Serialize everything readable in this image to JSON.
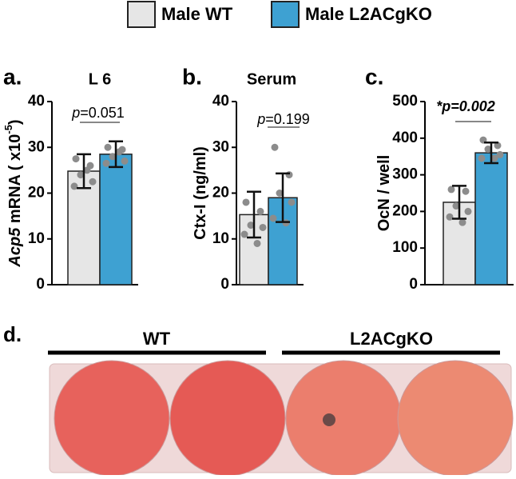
{
  "legend": {
    "items": [
      {
        "name": "Male WT",
        "color": "#e6e6e6"
      },
      {
        "name": "Male L2ACgKO",
        "color": "#3ea1d2"
      }
    ]
  },
  "chart_data": [
    {
      "type": "bar",
      "panel": "a.",
      "title": "L 6",
      "ylabel_parts": [
        "Acp5",
        " mRNA ( x10",
        "-5",
        ")"
      ],
      "annotation_parts": [
        "p",
        "=0.051"
      ],
      "values": [
        24.8,
        28.5
      ],
      "errors": [
        3.7,
        2.8
      ],
      "points": [
        [
          27.5,
          26,
          24,
          22.5,
          21.5,
          25
        ],
        [
          30,
          29.5,
          28,
          27,
          26.5,
          29
        ]
      ],
      "ylim": [
        0,
        40
      ],
      "yticks": [
        0,
        10,
        20,
        30,
        40
      ]
    },
    {
      "type": "bar",
      "panel": "b.",
      "title": "Serum",
      "ylabel_parts": [
        "Ctx-I (ng/ml)"
      ],
      "annotation_parts": [
        "p",
        "=0.199"
      ],
      "values": [
        15.3,
        19
      ],
      "errors": [
        5,
        5.3
      ],
      "points": [
        [
          18,
          16,
          13,
          12.5,
          11,
          9
        ],
        [
          30,
          24,
          20,
          18,
          14.5,
          13.5
        ]
      ],
      "ylim": [
        0,
        40
      ],
      "yticks": [
        0,
        10,
        20,
        30,
        40
      ]
    },
    {
      "type": "bar",
      "panel": "c.",
      "ylabel_parts": [
        "OcN / well"
      ],
      "annotation_parts": [
        "*p=0.002"
      ],
      "values": [
        225,
        360
      ],
      "errors": [
        45,
        28
      ],
      "points": [
        [
          260,
          255,
          215,
          200,
          185,
          170
        ],
        [
          395,
          380,
          370,
          355,
          345,
          345
        ]
      ],
      "ylim": [
        0,
        500
      ],
      "yticks": [
        0,
        100,
        200,
        300,
        400,
        500
      ]
    }
  ],
  "image_panel": {
    "panel": "d.",
    "groups": [
      "WT",
      "L2ACgKO"
    ]
  }
}
